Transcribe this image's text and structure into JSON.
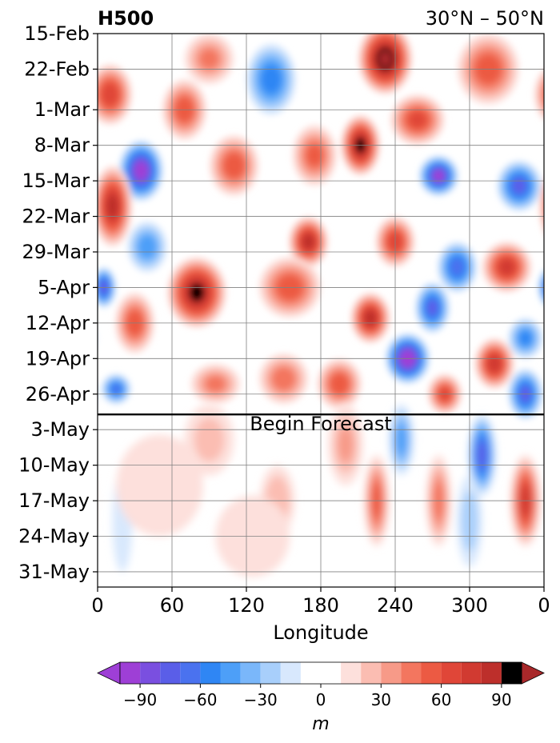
{
  "chart_data": {
    "type": "heatmap",
    "title_left": "H500",
    "title_right": "30°N – 50°N",
    "xlabel": "Longitude",
    "x_ticks": [
      "0",
      "60",
      "120",
      "180",
      "240",
      "300",
      "0"
    ],
    "x_tick_values": [
      0,
      60,
      120,
      180,
      240,
      300,
      360
    ],
    "xlim": [
      0,
      360
    ],
    "y_ticks": [
      "15-Feb",
      "22-Feb",
      "1-Mar",
      "8-Mar",
      "15-Mar",
      "22-Mar",
      "29-Mar",
      "5-Apr",
      "12-Apr",
      "19-Apr",
      "26-Apr",
      "3-May",
      "10-May",
      "17-May",
      "24-May",
      "31-May"
    ],
    "y_tick_values": [
      "2024-02-15",
      "2024-02-22",
      "2024-03-01",
      "2024-03-08",
      "2024-03-15",
      "2024-03-22",
      "2024-03-29",
      "2024-04-05",
      "2024-04-12",
      "2024-04-19",
      "2024-04-26",
      "2024-05-03",
      "2024-05-10",
      "2024-05-17",
      "2024-05-24",
      "2024-05-31"
    ],
    "ylim": [
      "2024-02-15",
      "2024-06-03"
    ],
    "forecast_start": "2024-04-30",
    "forecast_label": "Begin Forecast",
    "grid": true,
    "colorbar": {
      "label": "m",
      "ticks": [
        "−90",
        "−60",
        "−30",
        "0",
        "30",
        "60",
        "90"
      ],
      "tick_values": [
        -90,
        -60,
        -30,
        0,
        30,
        60,
        90
      ],
      "levels": [
        -100,
        -90,
        -80,
        -70,
        -60,
        -50,
        -40,
        -30,
        -20,
        -10,
        10,
        20,
        30,
        40,
        50,
        60,
        70,
        80,
        90,
        100
      ],
      "colors": [
        "#9e3fd6",
        "#7a4fe0",
        "#5a5ee8",
        "#4a72ef",
        "#2f86f4",
        "#4d9ff8",
        "#7ab7fa",
        "#a8cffb",
        "#d8e8fd",
        "#ffffff",
        "#fde0dc",
        "#fbbdb2",
        "#f79a88",
        "#f3765f",
        "#ec5a43",
        "#e04638",
        "#d13a31",
        "#bd2f2b"
      ],
      "extend_low": "#9e3fd6",
      "extend_high": "#a8282a"
    },
    "blobs": [
      {
        "lon": 232,
        "date": "2024-02-20",
        "value": 100,
        "rlon": 22,
        "rdays": 7
      },
      {
        "lon": 10,
        "date": "2024-02-27",
        "value": 65,
        "rlon": 18,
        "rdays": 6
      },
      {
        "lon": 90,
        "date": "2024-02-20",
        "value": 40,
        "rlon": 20,
        "rdays": 5
      },
      {
        "lon": 70,
        "date": "2024-03-01",
        "value": 55,
        "rlon": 18,
        "rdays": 6
      },
      {
        "lon": 35,
        "date": "2024-03-13",
        "value": -95,
        "rlon": 18,
        "rdays": 6
      },
      {
        "lon": 140,
        "date": "2024-02-24",
        "value": -55,
        "rlon": 20,
        "rdays": 7
      },
      {
        "lon": 110,
        "date": "2024-03-12",
        "value": 55,
        "rlon": 20,
        "rdays": 6
      },
      {
        "lon": 175,
        "date": "2024-03-10",
        "value": 50,
        "rlon": 18,
        "rdays": 6
      },
      {
        "lon": 212,
        "date": "2024-03-08",
        "value": 90,
        "rlon": 16,
        "rdays": 6
      },
      {
        "lon": 258,
        "date": "2024-03-03",
        "value": 60,
        "rlon": 22,
        "rdays": 5
      },
      {
        "lon": 275,
        "date": "2024-03-14",
        "value": -90,
        "rlon": 16,
        "rdays": 4
      },
      {
        "lon": 340,
        "date": "2024-03-16",
        "value": -70,
        "rlon": 18,
        "rdays": 5
      },
      {
        "lon": 315,
        "date": "2024-02-22",
        "value": 55,
        "rlon": 25,
        "rdays": 7
      },
      {
        "lon": 12,
        "date": "2024-03-20",
        "value": 80,
        "rlon": 16,
        "rdays": 8
      },
      {
        "lon": 170,
        "date": "2024-03-27",
        "value": 80,
        "rlon": 16,
        "rdays": 5
      },
      {
        "lon": 240,
        "date": "2024-03-27",
        "value": 65,
        "rlon": 16,
        "rdays": 5
      },
      {
        "lon": 330,
        "date": "2024-04-01",
        "value": 70,
        "rlon": 20,
        "rdays": 5
      },
      {
        "lon": 290,
        "date": "2024-04-01",
        "value": -65,
        "rlon": 16,
        "rdays": 5
      },
      {
        "lon": 40,
        "date": "2024-03-28",
        "value": -45,
        "rlon": 16,
        "rdays": 5
      },
      {
        "lon": 80,
        "date": "2024-04-06",
        "value": 90,
        "rlon": 24,
        "rdays": 7
      },
      {
        "lon": 155,
        "date": "2024-04-05",
        "value": 55,
        "rlon": 25,
        "rdays": 6
      },
      {
        "lon": 220,
        "date": "2024-04-11",
        "value": 80,
        "rlon": 16,
        "rdays": 5
      },
      {
        "lon": 270,
        "date": "2024-04-09",
        "value": -70,
        "rlon": 14,
        "rdays": 5
      },
      {
        "lon": 5,
        "date": "2024-04-05",
        "value": -75,
        "rlon": 10,
        "rdays": 4
      },
      {
        "lon": 30,
        "date": "2024-04-12",
        "value": 55,
        "rlon": 16,
        "rdays": 6
      },
      {
        "lon": 250,
        "date": "2024-04-19",
        "value": -100,
        "rlon": 18,
        "rdays": 5
      },
      {
        "lon": 320,
        "date": "2024-04-20",
        "value": 75,
        "rlon": 16,
        "rdays": 5
      },
      {
        "lon": 195,
        "date": "2024-04-24",
        "value": 55,
        "rlon": 18,
        "rdays": 5
      },
      {
        "lon": 345,
        "date": "2024-04-26",
        "value": -70,
        "rlon": 14,
        "rdays": 5
      },
      {
        "lon": 280,
        "date": "2024-04-26",
        "value": 60,
        "rlon": 14,
        "rdays": 4
      },
      {
        "lon": 15,
        "date": "2024-04-25",
        "value": -60,
        "rlon": 12,
        "rdays": 3
      },
      {
        "lon": 150,
        "date": "2024-04-23",
        "value": 45,
        "rlon": 20,
        "rdays": 5
      },
      {
        "lon": 95,
        "date": "2024-04-24",
        "value": 40,
        "rlon": 20,
        "rdays": 4
      },
      {
        "lon": 345,
        "date": "2024-04-15",
        "value": -50,
        "rlon": 14,
        "rdays": 4
      },
      {
        "lon": 90,
        "date": "2024-05-05",
        "value": 22,
        "rlon": 20,
        "rdays": 7
      },
      {
        "lon": 200,
        "date": "2024-05-06",
        "value": 30,
        "rlon": 14,
        "rdays": 8
      },
      {
        "lon": 245,
        "date": "2024-05-05",
        "value": -45,
        "rlon": 10,
        "rdays": 7
      },
      {
        "lon": 310,
        "date": "2024-05-08",
        "value": -75,
        "rlon": 11,
        "rdays": 8
      },
      {
        "lon": 345,
        "date": "2024-05-17",
        "value": 75,
        "rlon": 12,
        "rdays": 9
      },
      {
        "lon": 275,
        "date": "2024-05-17",
        "value": 45,
        "rlon": 10,
        "rdays": 9
      },
      {
        "lon": 225,
        "date": "2024-05-17",
        "value": 55,
        "rlon": 10,
        "rdays": 9
      },
      {
        "lon": 300,
        "date": "2024-05-21",
        "value": -25,
        "rlon": 10,
        "rdays": 9
      },
      {
        "lon": 145,
        "date": "2024-05-17",
        "value": 28,
        "rlon": 14,
        "rdays": 7
      },
      {
        "lon": 20,
        "date": "2024-05-21",
        "value": -15,
        "rlon": 8,
        "rdays": 10
      },
      {
        "lon": 50,
        "date": "2024-05-14",
        "value": 12,
        "rlon": 35,
        "rdays": 10
      },
      {
        "lon": 125,
        "date": "2024-05-24",
        "value": 12,
        "rlon": 30,
        "rdays": 8
      }
    ]
  }
}
